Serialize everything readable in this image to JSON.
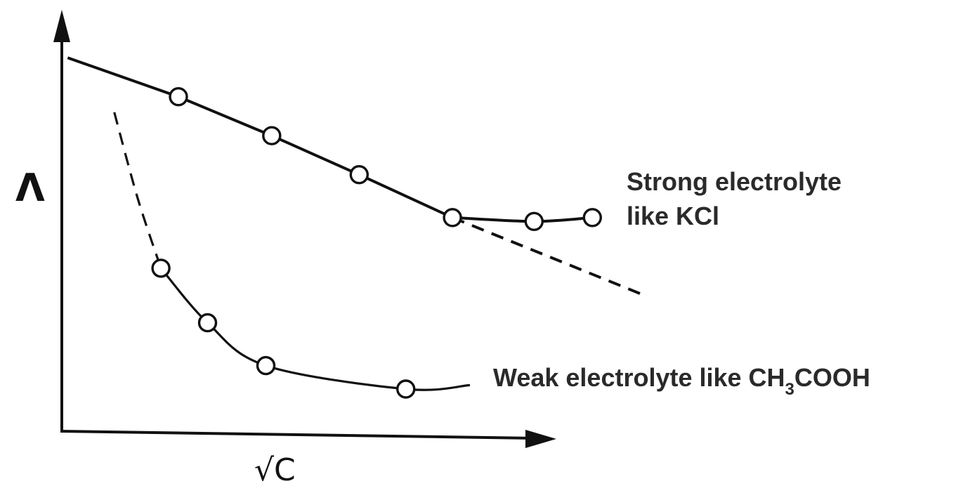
{
  "chart_data": {
    "type": "line",
    "xlabel": "√C",
    "ylabel": "Λ",
    "series": [
      {
        "key": "strong",
        "label_line1": "Strong electrolyte",
        "label_line2": "like KCl",
        "points": [
          [
            0.2,
            0.86
          ],
          [
            0.36,
            0.76
          ],
          [
            0.51,
            0.66
          ],
          [
            0.67,
            0.55
          ],
          [
            0.81,
            0.54
          ],
          [
            0.91,
            0.55
          ]
        ],
        "intercept": [
          0.01,
          0.96
        ],
        "extrapolation_end": [
          1.0,
          0.35
        ]
      },
      {
        "key": "weak",
        "label_main": "Weak electrolyte like CH",
        "label_sub": "3",
        "label_tail": "COOH",
        "points": [
          [
            0.17,
            0.42
          ],
          [
            0.25,
            0.28
          ],
          [
            0.35,
            0.17
          ],
          [
            0.59,
            0.11
          ]
        ],
        "extrapolation_start": [
          0.09,
          0.82
        ],
        "tail_end": [
          0.7,
          0.12
        ]
      }
    ]
  }
}
